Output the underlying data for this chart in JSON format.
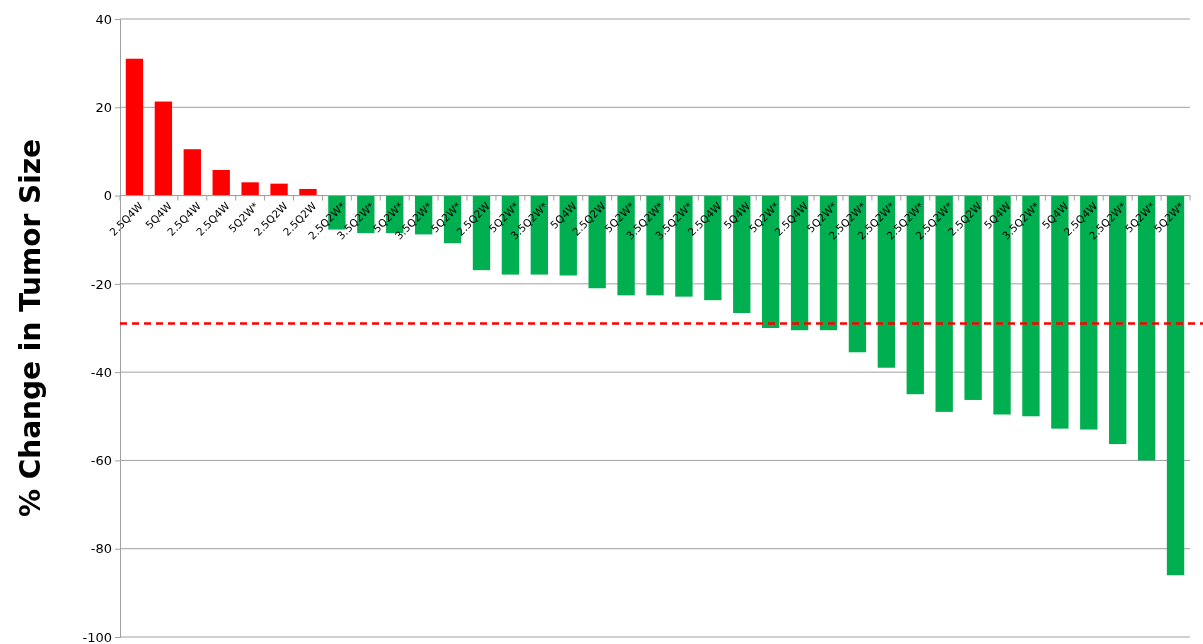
{
  "chart_data": {
    "type": "bar",
    "ylabel": "% Change in Tumor Size",
    "categories": [
      "2.5Q4W",
      "5Q4W",
      "2.5Q4W",
      "2.5Q4W",
      "5Q2W*",
      "2.5Q2W",
      "2.5Q2W",
      "2.5Q2W*",
      "3.5Q2W*",
      "5Q2W*",
      "3.5Q2W*",
      "5Q2W*",
      "2.5Q2W",
      "5Q2W*",
      "3.5Q2W*",
      "5Q4W",
      "2.5Q2W",
      "5Q2W*",
      "3.5Q2W*",
      "3.5Q2W*",
      "2.5Q4W",
      "5Q4W",
      "5Q2W*",
      "2.5Q4W",
      "5Q2W*",
      "2.5Q2W*",
      "2.5Q2W*",
      "2.5Q2W*",
      "2.5Q2W*",
      "2.5Q2W",
      "5Q4W",
      "3.5Q2W*",
      "5Q4W",
      "2.5Q4W",
      "2.5Q2W*",
      "5Q2W*",
      "5Q2W*"
    ],
    "values": [
      31,
      21.3,
      10.5,
      5.8,
      3,
      2.7,
      1.5,
      -7.7,
      -8.5,
      -8.5,
      -8.8,
      -10.8,
      -16.9,
      -17.9,
      -17.9,
      -18.1,
      -21,
      -22.6,
      -22.6,
      -22.9,
      -23.7,
      -26.6,
      -30,
      -30.5,
      -30.5,
      -35.5,
      -39,
      -45,
      -49,
      -46.3,
      -49.6,
      -50,
      -52.8,
      -53,
      -56.3,
      -60,
      -86
    ],
    "colors": [
      "#ff0000",
      "#ff0000",
      "#ff0000",
      "#ff0000",
      "#ff0000",
      "#ff0000",
      "#ff0000",
      "#00b050",
      "#00b050",
      "#00b050",
      "#00b050",
      "#00b050",
      "#00b050",
      "#00b050",
      "#00b050",
      "#00b050",
      "#00b050",
      "#00b050",
      "#00b050",
      "#00b050",
      "#00b050",
      "#00b050",
      "#00b050",
      "#00b050",
      "#00b050",
      "#00b050",
      "#00b050",
      "#00b050",
      "#00b050",
      "#00b050",
      "#00b050",
      "#00b050",
      "#00b050",
      "#00b050",
      "#00b050",
      "#00b050",
      "#00b050"
    ],
    "ylim": [
      -100,
      40
    ],
    "yticks": [
      -100,
      -80,
      -60,
      -40,
      -20,
      0,
      20,
      40
    ],
    "grid": "y",
    "ref_lines": [
      {
        "axis": "y",
        "value": -29,
        "color": "#ff0000",
        "line_style": "dashed"
      }
    ]
  }
}
